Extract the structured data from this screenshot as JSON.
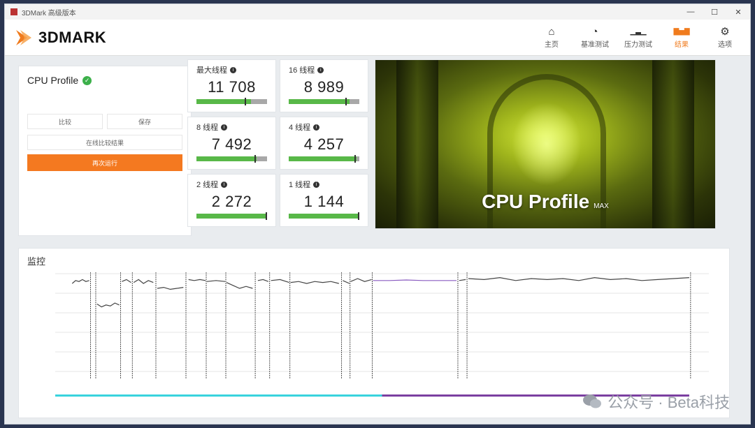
{
  "titlebar": {
    "title": "3DMark 高级版本",
    "minimize": "—",
    "maximize": "☐",
    "close": "✕"
  },
  "header": {
    "logo_text": "3DMARK",
    "nav": [
      {
        "label": "主页",
        "icon": "⌂",
        "active": false
      },
      {
        "label": "基准测试",
        "icon": "◔",
        "active": false
      },
      {
        "label": "压力测试",
        "icon": "▁▃▁",
        "active": false
      },
      {
        "label": "结果",
        "icon": "▇▅▇",
        "active": true
      },
      {
        "label": "选项",
        "icon": "⚙",
        "active": false
      }
    ]
  },
  "left_panel": {
    "title": "CPU Profile",
    "btn_left": "比较",
    "btn_right": "保存",
    "btn_wide": "在线比较结果",
    "btn_primary": "再次运行"
  },
  "scores": [
    {
      "label": "最大线程",
      "value": "11 708",
      "fill": 0.77,
      "marker": 0.68
    },
    {
      "label": "16 线程",
      "value": "8 989",
      "fill": 0.86,
      "marker": 0.8
    },
    {
      "label": "8 线程",
      "value": "7 492",
      "fill": 0.85,
      "marker": 0.82
    },
    {
      "label": "4 线程",
      "value": "4 257",
      "fill": 0.96,
      "marker": 0.93
    },
    {
      "label": "2 线程",
      "value": "2 272",
      "fill": 1.0,
      "marker": 0.98
    },
    {
      "label": "1 线程",
      "value": "1 144",
      "fill": 1.0,
      "marker": 0.98
    }
  ],
  "hero": {
    "title": "CPU Profile",
    "suffix": "MAX"
  },
  "monitoring": {
    "title": "监控"
  },
  "chart_data": {
    "type": "line",
    "title": "",
    "xlabel": "",
    "ylabel": "",
    "xlim": [
      0,
      100
    ],
    "ylim": [
      0,
      5000
    ],
    "grid": true,
    "segments": [
      {
        "x0": 2.6,
        "x1": 5.2,
        "y": [
          4500,
          4650,
          4600,
          4700,
          4600,
          4650
        ]
      },
      {
        "x0": 6.4,
        "x1": 9.8,
        "y": [
          3450,
          3300,
          3400,
          3350,
          3500,
          3400
        ]
      },
      {
        "x0": 10.2,
        "x1": 11.6,
        "y": [
          4600,
          4700,
          4550
        ]
      },
      {
        "x0": 12.0,
        "x1": 15.0,
        "y": [
          4550,
          4700,
          4500,
          4650,
          4550
        ]
      },
      {
        "x0": 15.6,
        "x1": 19.6,
        "y": [
          4250,
          4300,
          4200,
          4250,
          4300
        ]
      },
      {
        "x0": 20.4,
        "x1": 23.0,
        "y": [
          4700,
          4650,
          4700,
          4650
        ]
      },
      {
        "x0": 23.2,
        "x1": 26.0,
        "y": [
          4600,
          4650,
          4600
        ]
      },
      {
        "x0": 26.2,
        "x1": 30.2,
        "y": [
          4550,
          4400,
          4250,
          4350,
          4250
        ]
      },
      {
        "x0": 31.0,
        "x1": 32.6,
        "y": [
          4650,
          4700,
          4600
        ]
      },
      {
        "x0": 33.0,
        "x1": 35.8,
        "y": [
          4650,
          4700,
          4550
        ]
      },
      {
        "x0": 36.0,
        "x1": 43.4,
        "y": [
          4550,
          4600,
          4500,
          4600,
          4550,
          4600,
          4500
        ]
      },
      {
        "x0": 44.0,
        "x1": 45.0,
        "y": [
          4650,
          4500
        ]
      },
      {
        "x0": 45.2,
        "x1": 48.4,
        "y": [
          4600,
          4750,
          4600,
          4700
        ]
      },
      {
        "x0": 48.6,
        "x1": 61.4,
        "y": [
          4650,
          4650,
          4680,
          4650,
          4650,
          4650
        ]
      },
      {
        "x0": 61.8,
        "x1": 62.8,
        "y": [
          4650,
          4700
        ]
      },
      {
        "x0": 63.2,
        "x1": 97.0,
        "y": [
          4750,
          4700,
          4800,
          4650,
          4750,
          4700,
          4750,
          4650,
          4800,
          4700,
          4750,
          4650,
          4700,
          4750,
          4800
        ]
      }
    ],
    "boundaries": [
      5.4,
      6.2,
      10.0,
      11.8,
      15.4,
      20.0,
      23.1,
      26.1,
      30.6,
      32.8,
      35.9,
      43.8,
      45.1,
      48.5,
      61.6,
      63.0,
      97.2
    ],
    "progress": [
      {
        "color": "#39d3dd",
        "x0": 0,
        "x1": 50
      },
      {
        "color": "#7b3fa0",
        "x0": 50,
        "x1": 97
      }
    ]
  },
  "watermark": "公众号 · Beta科技"
}
